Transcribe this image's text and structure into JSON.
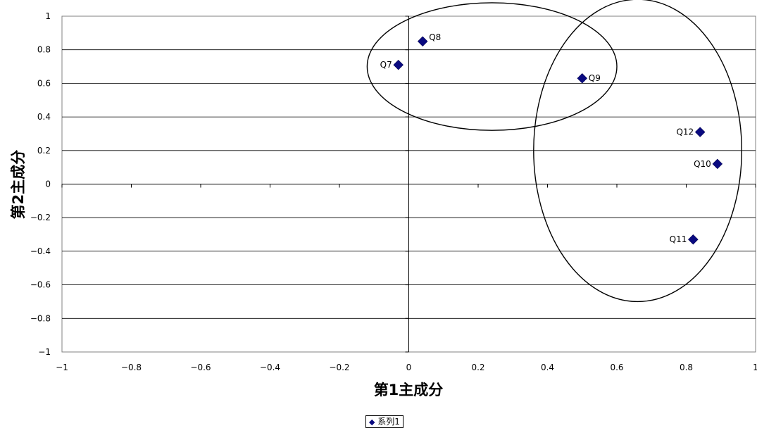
{
  "chart_data": {
    "type": "scatter",
    "xlabel": "第1主成分",
    "ylabel": "第2主成分",
    "xlim": [
      -1,
      1
    ],
    "ylim": [
      -1,
      1
    ],
    "x_ticks": [
      "−1",
      "−0.8",
      "−0.6",
      "−0.4",
      "−0.2",
      "0",
      "0.2",
      "0.4",
      "0.6",
      "0.8",
      "1"
    ],
    "y_ticks": [
      "−1",
      "−0.8",
      "−0.6",
      "−0.4",
      "−0.2",
      "0",
      "0.2",
      "0.4",
      "0.6",
      "0.8",
      "1"
    ],
    "grid": "horizontal",
    "legend": "bottom",
    "series": [
      {
        "name": "系列1",
        "color": "#0a0a80",
        "marker": "diamond",
        "points": [
          {
            "label": "Q7",
            "x": -0.03,
            "y": 0.71
          },
          {
            "label": "Q8",
            "x": 0.04,
            "y": 0.85
          },
          {
            "label": "Q9",
            "x": 0.5,
            "y": 0.63
          },
          {
            "label": "Q10",
            "x": 0.89,
            "y": 0.12
          },
          {
            "label": "Q11",
            "x": 0.82,
            "y": -0.33
          },
          {
            "label": "Q12",
            "x": 0.84,
            "y": 0.31
          }
        ]
      }
    ],
    "annotations": [
      {
        "shape": "ellipse",
        "center": [
          0.24,
          0.7
        ],
        "radii": [
          0.36,
          0.38
        ]
      },
      {
        "shape": "ellipse",
        "center": [
          0.66,
          0.2
        ],
        "radii": [
          0.3,
          0.9
        ]
      }
    ]
  }
}
